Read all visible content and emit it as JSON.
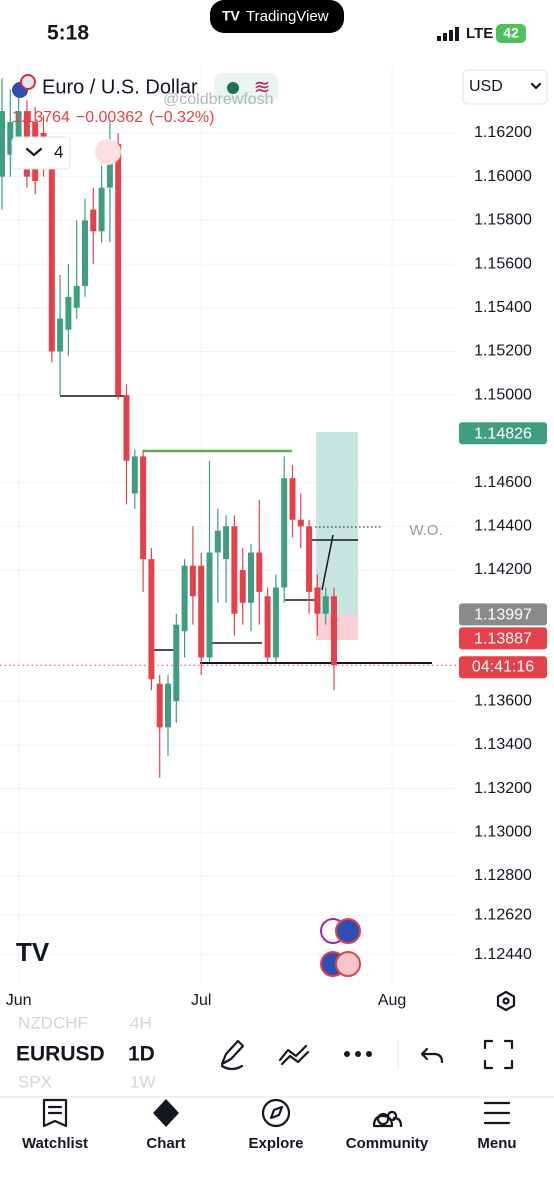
{
  "status_bar": {
    "time": "5:18",
    "app": "TradingView",
    "network": "LTE",
    "battery": "42"
  },
  "header": {
    "symbol_name": "Euro / U.S. Dollar",
    "last": "1.13764",
    "change": "−0.00362",
    "change_pct": "(−0.32%)",
    "watermark": "@coldbrewfosh",
    "indicators": "4",
    "currency": "USD"
  },
  "chart_data": {
    "type": "candlestick",
    "categories": [
      null,
      null,
      null,
      null,
      null,
      null,
      null,
      null,
      null,
      null,
      null,
      null,
      null,
      null,
      null,
      null,
      null,
      null,
      null,
      null,
      null,
      null,
      null,
      null,
      null,
      null,
      null,
      null,
      null,
      null,
      null,
      null,
      null,
      null,
      null,
      null,
      null,
      null,
      null,
      null,
      null
    ],
    "open": [
      1.16,
      1.161,
      1.1615,
      1.163,
      1.1625,
      1.162,
      1.1605,
      1.152,
      1.153,
      1.154,
      1.155,
      1.1585,
      1.1575,
      1.1595,
      1.1615,
      1.15,
      1.1455,
      1.1472,
      1.1425,
      1.1368,
      1.1348,
      1.136,
      1.1392,
      1.1422,
      1.1422,
      1.138,
      1.1428,
      1.1425,
      1.144,
      1.142,
      1.1405,
      1.1428,
      1.1408,
      1.138,
      1.1412,
      1.1462,
      1.1443,
      1.144,
      1.1412,
      1.14,
      1.1408
    ],
    "high": [
      1.1645,
      1.164,
      1.1638,
      1.1635,
      1.1632,
      1.1628,
      1.161,
      1.1555,
      1.156,
      1.158,
      1.159,
      1.1595,
      1.1605,
      1.1625,
      1.162,
      1.1505,
      1.1475,
      1.1475,
      1.143,
      1.1372,
      1.1372,
      1.14,
      1.1425,
      1.144,
      1.1428,
      1.147,
      1.1448,
      1.1445,
      1.1445,
      1.143,
      1.1432,
      1.1452,
      1.1412,
      1.1418,
      1.1472,
      1.1468,
      1.1455,
      1.1443,
      1.1418,
      1.1412,
      1.1412
    ],
    "low": [
      1.1585,
      1.16,
      1.1605,
      1.1595,
      1.1592,
      1.16,
      1.1515,
      1.15,
      1.1518,
      1.1535,
      1.1545,
      1.156,
      1.157,
      1.157,
      1.1498,
      1.145,
      1.1448,
      1.141,
      1.1365,
      1.1325,
      1.1335,
      1.135,
      1.138,
      1.1395,
      1.1372,
      1.1378,
      1.1405,
      1.1405,
      1.139,
      1.1395,
      1.1392,
      1.1395,
      1.1378,
      1.1378,
      1.1405,
      1.1435,
      1.143,
      1.14,
      1.139,
      1.1395,
      1.1365
    ],
    "close": [
      1.163,
      1.1625,
      1.163,
      1.16,
      1.1598,
      1.1605,
      1.152,
      1.1535,
      1.1545,
      1.155,
      1.158,
      1.1575,
      1.1595,
      1.1615,
      1.15,
      1.147,
      1.1472,
      1.1425,
      1.137,
      1.1348,
      1.1368,
      1.1395,
      1.1422,
      1.1408,
      1.138,
      1.1428,
      1.1438,
      1.144,
      1.14,
      1.1405,
      1.1428,
      1.141,
      1.138,
      1.1412,
      1.1462,
      1.1443,
      1.144,
      1.141,
      1.14,
      1.1408,
      1.13764
    ],
    "up_color": "#3f9d82",
    "down_color": "#e5414b",
    "ylim": [
      1.12301,
      1.16511
    ],
    "yticks": [
      {
        "value": 1.162,
        "label": "1.16200"
      },
      {
        "value": 1.16,
        "label": "1.16000"
      },
      {
        "value": 1.158,
        "label": "1.15800"
      },
      {
        "value": 1.156,
        "label": "1.15600"
      },
      {
        "value": 1.154,
        "label": "1.15400"
      },
      {
        "value": 1.152,
        "label": "1.15200"
      },
      {
        "value": 1.15,
        "label": "1.15000"
      },
      {
        "value": 1.146,
        "label": "1.14600"
      },
      {
        "value": 1.144,
        "label": "1.14400"
      },
      {
        "value": 1.142,
        "label": "1.14200"
      },
      {
        "value": 1.136,
        "label": "1.13600"
      },
      {
        "value": 1.134,
        "label": "1.13400"
      },
      {
        "value": 1.132,
        "label": "1.13200"
      },
      {
        "value": 1.13,
        "label": "1.13000"
      },
      {
        "value": 1.128,
        "label": "1.12800"
      },
      {
        "value": 1.1262,
        "label": "1.12620"
      },
      {
        "value": 1.1244,
        "label": "1.12440"
      }
    ],
    "xticks": [
      {
        "value": 2,
        "label": "Jun"
      },
      {
        "value": 24,
        "label": "Jul"
      },
      {
        "value": 47,
        "label": "Aug"
      }
    ],
    "grid": true,
    "price_tags": [
      {
        "value": 1.14826,
        "color": "#3f9d82"
      },
      {
        "value": 1.13997,
        "color": "#8a8a8a"
      },
      {
        "value": 1.13887,
        "color": "#e5414b"
      }
    ],
    "countdown": "04:41:16",
    "annotation": "W.O."
  },
  "toolbar": {
    "symbols": [
      "NZDCHF",
      "EURUSD",
      "SPX"
    ],
    "intervals": [
      "4H",
      "1D",
      "1W"
    ]
  },
  "nav": [
    "Watchlist",
    "Chart",
    "Explore",
    "Community",
    "Menu"
  ]
}
